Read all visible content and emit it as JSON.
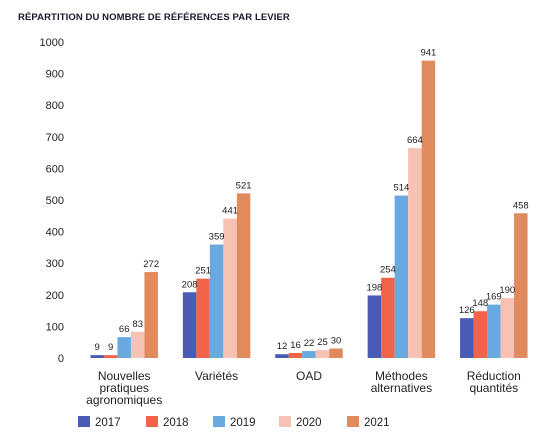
{
  "chart_data": {
    "type": "bar",
    "title": "RÉPARTITION DU NOMBRE DE RÉFÉRENCES PAR LEVIER",
    "xlabel": "",
    "ylabel": "",
    "ylim": [
      0,
      1000
    ],
    "yticks": [
      0,
      100,
      200,
      300,
      400,
      500,
      600,
      700,
      800,
      900,
      1000
    ],
    "grid": false,
    "legend_position": "bottom",
    "categories": [
      [
        "Nouvelles",
        "pratiques",
        "agronomiques"
      ],
      [
        "Variétés"
      ],
      [
        "OAD"
      ],
      [
        "Méthodes",
        "alternatives"
      ],
      [
        "Réduction",
        "quantités"
      ]
    ],
    "series": [
      {
        "name": "2017",
        "color": "#4a5bb5",
        "values": [
          9,
          208,
          12,
          198,
          126
        ]
      },
      {
        "name": "2018",
        "color": "#f26449",
        "values": [
          9,
          251,
          16,
          254,
          148
        ]
      },
      {
        "name": "2019",
        "color": "#6aa9e0",
        "values": [
          66,
          359,
          22,
          514,
          169
        ]
      },
      {
        "name": "2020",
        "color": "#f7c2b3",
        "values": [
          83,
          441,
          25,
          664,
          190
        ]
      },
      {
        "name": "2021",
        "color": "#e08a5e",
        "values": [
          272,
          521,
          30,
          941,
          458
        ]
      }
    ]
  }
}
